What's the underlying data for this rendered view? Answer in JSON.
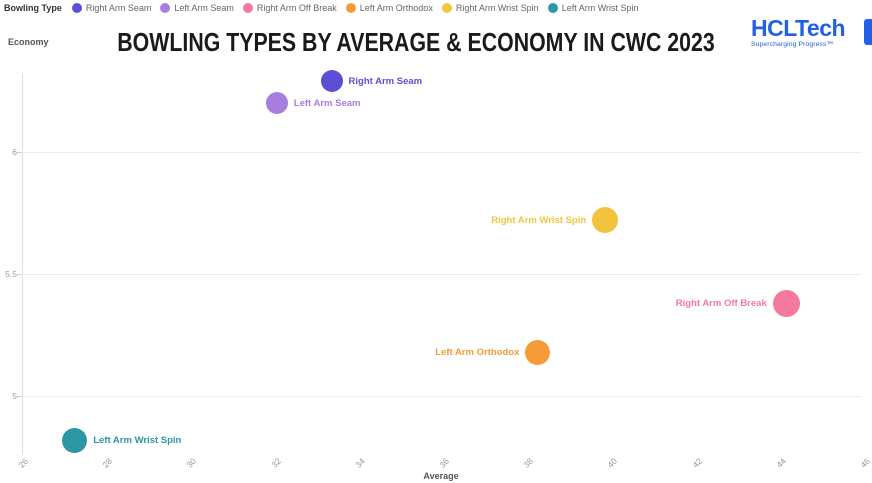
{
  "legend": {
    "title": "Bowling Type",
    "items": [
      {
        "label": "Right Arm Seam",
        "color": "#5b4fd5"
      },
      {
        "label": "Left Arm Seam",
        "color": "#a77de0"
      },
      {
        "label": "Right Arm Off Break",
        "color": "#f4799c"
      },
      {
        "label": "Left Arm Orthodox",
        "color": "#f59c38"
      },
      {
        "label": "Right Arm Wrist Spin",
        "color": "#f2c43d"
      },
      {
        "label": "Left Arm Wrist Spin",
        "color": "#2b96a4"
      }
    ]
  },
  "header": {
    "title": "BOWLING TYPES BY AVERAGE & ECONOMY IN CWC 2023",
    "logo": {
      "text": "HCLTech",
      "tagline": "Supercharging Progress™",
      "color": "#2360e6"
    }
  },
  "chart_data": {
    "type": "scatter",
    "title": "Bowling Types by Average & Economy in CWC 2023",
    "xlabel": "Average",
    "ylabel": "Economy",
    "xlim": [
      26,
      46
    ],
    "ylim": [
      4.76,
      6.4
    ],
    "x_ticks": [
      26,
      28,
      30,
      32,
      34,
      36,
      38,
      40,
      42,
      44,
      46
    ],
    "y_ticks": [
      5,
      5.5,
      6
    ],
    "grid": "horizontal-only",
    "legend_position": "top-left",
    "series": [
      {
        "name": "Right Arm Seam",
        "average": 33.4,
        "economy": 6.29,
        "bubble_radius_px": 11,
        "color": "#5b4fd5",
        "label_side": "right"
      },
      {
        "name": "Left Arm Seam",
        "average": 32.1,
        "economy": 6.2,
        "bubble_radius_px": 11,
        "color": "#a77de0",
        "label_side": "right"
      },
      {
        "name": "Right Arm Wrist Spin",
        "average": 39.9,
        "economy": 5.72,
        "bubble_radius_px": 13,
        "color": "#f2c43d",
        "label_side": "left"
      },
      {
        "name": "Right Arm Off Break",
        "average": 44.2,
        "economy": 5.38,
        "bubble_radius_px": 13.5,
        "color": "#f4799c",
        "label_side": "left"
      },
      {
        "name": "Left Arm Orthodox",
        "average": 38.3,
        "economy": 5.18,
        "bubble_radius_px": 12.5,
        "color": "#f59c38",
        "label_side": "left"
      },
      {
        "name": "Left Arm Wrist Spin",
        "average": 27.3,
        "economy": 4.82,
        "bubble_radius_px": 12.5,
        "color": "#2b96a4",
        "label_side": "right"
      }
    ]
  }
}
